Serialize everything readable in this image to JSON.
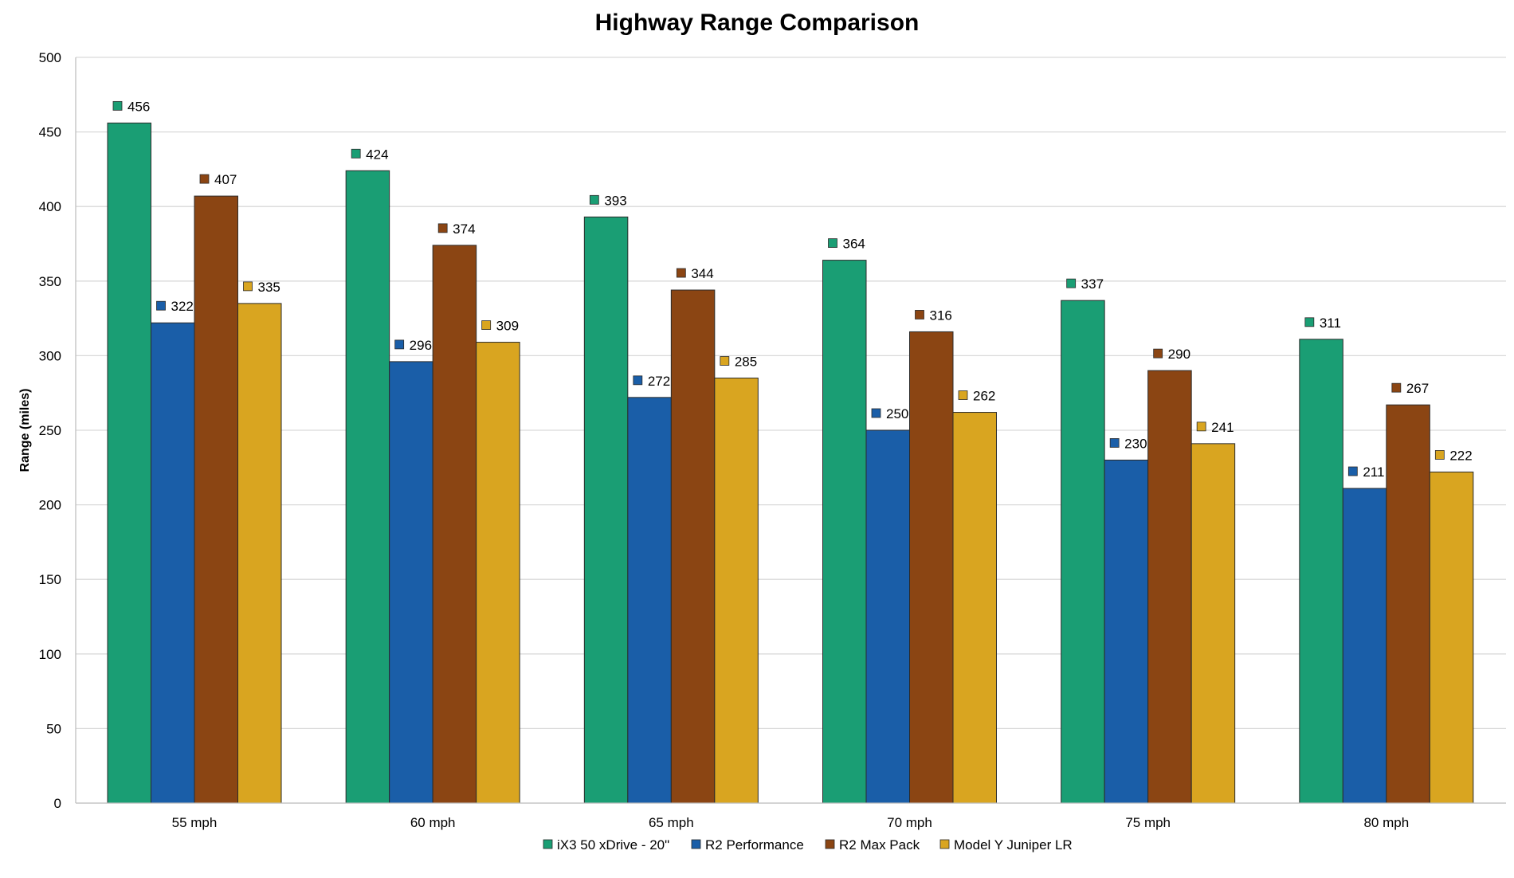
{
  "chart_data": {
    "type": "bar",
    "title": "Highway Range Comparison",
    "xlabel": "",
    "ylabel": "Range (miles)",
    "ylim": [
      0,
      500
    ],
    "yticks": [
      0,
      50,
      100,
      150,
      200,
      250,
      300,
      350,
      400,
      450,
      500
    ],
    "grid": true,
    "legend_position": "bottom",
    "categories": [
      "55 mph",
      "60 mph",
      "65 mph",
      "70 mph",
      "75 mph",
      "80 mph"
    ],
    "series": [
      {
        "name": "iX3 50 xDrive - 20\"",
        "color": "#1a9e74",
        "values": [
          456,
          424,
          393,
          364,
          337,
          311
        ]
      },
      {
        "name": "R2 Performance",
        "color": "#1a5ea8",
        "values": [
          322,
          296,
          272,
          250,
          230,
          211
        ]
      },
      {
        "name": "R2 Max Pack",
        "color": "#8b4513",
        "values": [
          407,
          374,
          344,
          316,
          290,
          267
        ]
      },
      {
        "name": "Model Y Juniper LR",
        "color": "#d9a520",
        "values": [
          335,
          309,
          285,
          262,
          241,
          222
        ]
      }
    ]
  }
}
